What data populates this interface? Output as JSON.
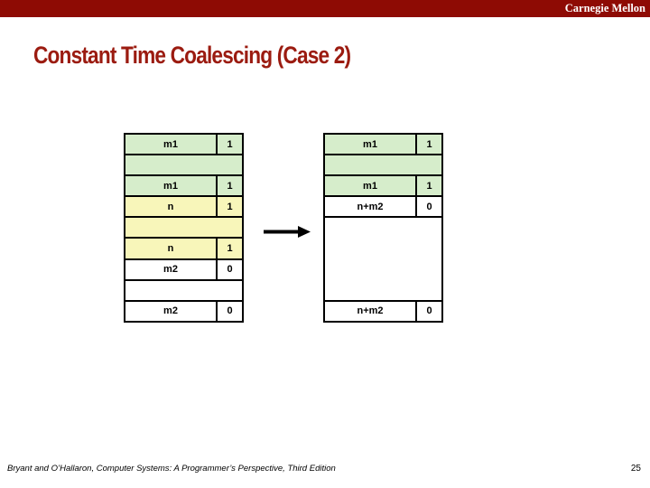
{
  "banner": {
    "brand": "Carnegie Mellon"
  },
  "title": "Constant Time Coalescing (Case 2)",
  "colors": {
    "banner_red": "#8e0b04",
    "title_red": "#9b1b10",
    "block_green": "#d6edcb",
    "block_yellow": "#f8f6ba",
    "block_white": "#ffffff",
    "border_black": "#000000"
  },
  "diagram": {
    "arrow_icon": "right-arrow",
    "before_table": {
      "name": "heap-before-coalescing",
      "rows": [
        {
          "label": "m1",
          "value": "1",
          "bg": "green",
          "span": false,
          "units": 1
        },
        {
          "label": "",
          "value": "",
          "bg": "green",
          "span": true,
          "units": 1
        },
        {
          "label": "m1",
          "value": "1",
          "bg": "green",
          "span": false,
          "units": 1
        },
        {
          "label": "n",
          "value": "1",
          "bg": "yellow",
          "span": false,
          "units": 1
        },
        {
          "label": "",
          "value": "",
          "bg": "yellow",
          "span": true,
          "units": 1
        },
        {
          "label": "n",
          "value": "1",
          "bg": "yellow",
          "span": false,
          "units": 1
        },
        {
          "label": "m2",
          "value": "0",
          "bg": "white",
          "span": false,
          "units": 1
        },
        {
          "label": "",
          "value": "",
          "bg": "white",
          "span": true,
          "units": 1
        },
        {
          "label": "m2",
          "value": "0",
          "bg": "white",
          "span": false,
          "units": 1
        }
      ]
    },
    "after_table": {
      "name": "heap-after-coalescing",
      "rows": [
        {
          "label": "m1",
          "value": "1",
          "bg": "green",
          "span": false,
          "units": 1
        },
        {
          "label": "",
          "value": "",
          "bg": "green",
          "span": true,
          "units": 1
        },
        {
          "label": "m1",
          "value": "1",
          "bg": "green",
          "span": false,
          "units": 1
        },
        {
          "label": "n+m2",
          "value": "0",
          "bg": "white",
          "span": false,
          "units": 1
        },
        {
          "label": "",
          "value": "",
          "bg": "white",
          "span": true,
          "units": 4
        },
        {
          "label": "n+m2",
          "value": "0",
          "bg": "white",
          "span": false,
          "units": 1
        }
      ]
    }
  },
  "footer": {
    "citation": "Bryant and O’Hallaron, Computer Systems: A Programmer’s Perspective, Third Edition",
    "page_number": "25"
  }
}
